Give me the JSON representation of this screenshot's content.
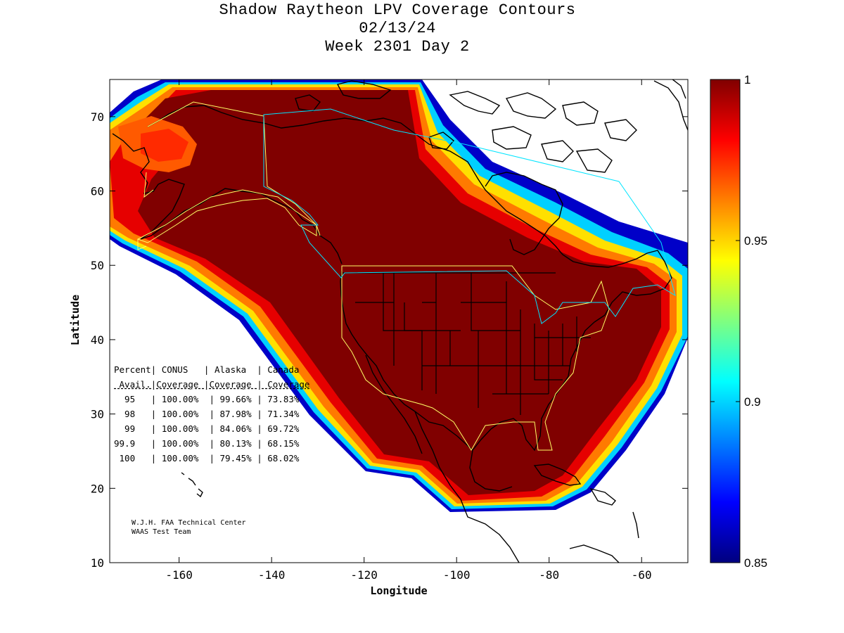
{
  "title": {
    "line1": "Shadow Raytheon LPV Coverage Contours",
    "line2": "02/13/24",
    "line3": "Week 2301 Day 2"
  },
  "axes": {
    "xlabel": "Longitude",
    "ylabel": "Latitude",
    "xlim": [
      -175,
      -50
    ],
    "ylim": [
      10,
      75
    ],
    "xticks": [
      -160,
      -140,
      -120,
      -100,
      -80,
      -60
    ],
    "yticks": [
      10,
      20,
      30,
      40,
      50,
      60,
      70
    ]
  },
  "colorbar": {
    "min": 0.85,
    "max": 1,
    "ticks": [
      0.85,
      0.9,
      0.95,
      1
    ],
    "tick_labels": [
      "0.85",
      "0.9",
      "0.95",
      "1"
    ],
    "colormap": "jet"
  },
  "table": {
    "header1": "Percent| CONUS   | Alaska  | Canada",
    "header2": " Avail.|Coverage |Coverage | Coverage",
    "rows": [
      "  95   | 100.00%  | 99.66% | 73.83%",
      "  98   | 100.00%  | 87.98% | 71.34%",
      "  99   | 100.00%  | 84.06% | 69.72%",
      "99.9   | 100.00%  | 80.13% | 68.15%",
      " 100   | 100.00%  | 79.45% | 68.02%"
    ]
  },
  "credit": {
    "line1": "W.J.H. FAA Technical Center",
    "line2": "WAAS Test Team"
  },
  "colors": {
    "core": "#800000",
    "conus_outline": "#ffff66",
    "canada_outline": "#00e5ff"
  }
}
